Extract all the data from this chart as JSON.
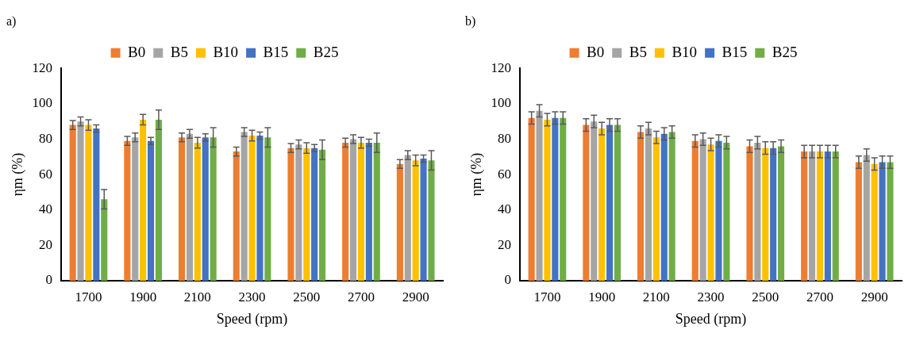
{
  "chart_data": [
    {
      "type": "bar",
      "title": "a)",
      "xlabel": "Speed (rpm)",
      "ylabel": "ηm (%)",
      "categories": [
        "1700",
        "1900",
        "2100",
        "2300",
        "2500",
        "2700",
        "2900"
      ],
      "ylim": [
        0,
        120
      ],
      "yticks": [
        0,
        20,
        40,
        60,
        80,
        100,
        120
      ],
      "grid": false,
      "legend": "top",
      "series": [
        {
          "name": "B0",
          "color": "#ed7d31",
          "values": [
            88,
            79,
            81,
            73,
            75,
            78,
            66
          ],
          "errors": [
            2.5,
            2.5,
            2.5,
            2.5,
            2.5,
            2.5,
            2.5
          ]
        },
        {
          "name": "B5",
          "color": "#a5a5a5",
          "values": [
            90,
            81,
            83,
            84,
            77,
            80,
            71
          ],
          "errors": [
            2.5,
            2.5,
            2.5,
            2.5,
            2.5,
            2.5,
            2.5
          ]
        },
        {
          "name": "B10",
          "color": "#ffc000",
          "values": [
            88,
            91,
            78,
            82,
            75,
            78,
            68
          ],
          "errors": [
            3,
            3,
            3,
            3,
            3,
            3,
            3
          ]
        },
        {
          "name": "B15",
          "color": "#4472c4",
          "values": [
            86,
            79,
            81,
            82,
            75,
            78,
            69
          ],
          "errors": [
            2,
            2,
            2,
            2,
            2,
            2,
            2
          ]
        },
        {
          "name": "B25",
          "color": "#70ad47",
          "values": [
            46,
            91,
            81,
            81,
            74,
            78,
            68
          ],
          "errors": [
            5.5,
            5.5,
            5.5,
            5.5,
            5.5,
            5.5,
            5.5
          ]
        }
      ]
    },
    {
      "type": "bar",
      "title": "b)",
      "xlabel": "Speed (rpm)",
      "ylabel": "ηm (%)",
      "categories": [
        "1700",
        "1900",
        "2100",
        "2300",
        "2500",
        "2700",
        "2900"
      ],
      "ylim": [
        0,
        120
      ],
      "yticks": [
        0,
        20,
        40,
        60,
        80,
        100,
        120
      ],
      "grid": false,
      "legend": "top",
      "series": [
        {
          "name": "B0",
          "color": "#ed7d31",
          "values": [
            92,
            88,
            84,
            79,
            76,
            73,
            67
          ],
          "errors": [
            3.5,
            3.5,
            3.5,
            3.5,
            3.5,
            3.5,
            3.5
          ]
        },
        {
          "name": "B5",
          "color": "#a5a5a5",
          "values": [
            96,
            90,
            86,
            80,
            78,
            73,
            71
          ],
          "errors": [
            3.5,
            3.5,
            3.5,
            3.5,
            3.5,
            3.5,
            3.5
          ]
        },
        {
          "name": "B10",
          "color": "#ffc000",
          "values": [
            91,
            86,
            81,
            77,
            75,
            73,
            66
          ],
          "errors": [
            3.5,
            3.5,
            3.5,
            3.5,
            3.5,
            3.5,
            3.5
          ]
        },
        {
          "name": "B15",
          "color": "#4472c4",
          "values": [
            92,
            88,
            83,
            79,
            75,
            73,
            67
          ],
          "errors": [
            3.5,
            3.5,
            3.5,
            3.5,
            3.5,
            3.5,
            3.5
          ]
        },
        {
          "name": "B25",
          "color": "#70ad47",
          "values": [
            92,
            88,
            84,
            78,
            76,
            73,
            67
          ],
          "errors": [
            3.5,
            3.5,
            3.5,
            3.5,
            3.5,
            3.5,
            3.5
          ]
        }
      ]
    }
  ]
}
